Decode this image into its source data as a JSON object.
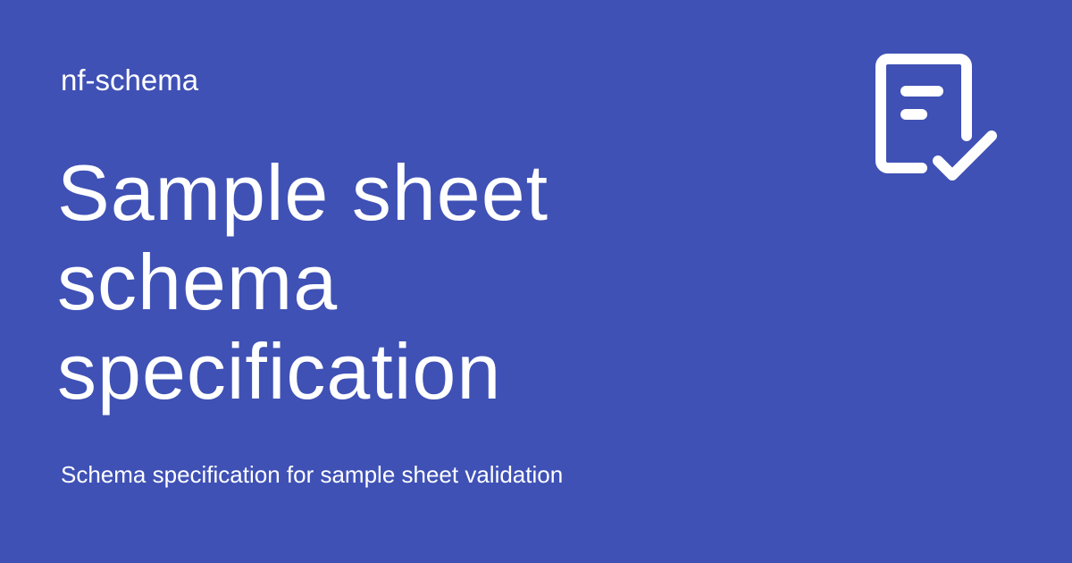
{
  "header": {
    "site_name": "nf-schema",
    "logo_icon": "document-check-icon"
  },
  "main": {
    "title_lines": [
      "Sample sheet",
      "schema",
      "specification"
    ],
    "description": "Schema specification for sample sheet validation"
  },
  "colors": {
    "background": "#3f51b5",
    "foreground": "#ffffff"
  }
}
